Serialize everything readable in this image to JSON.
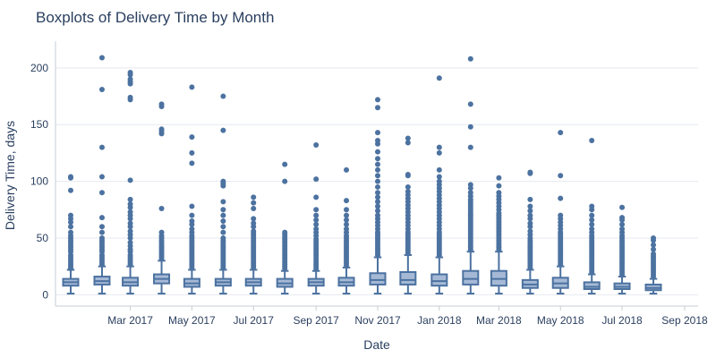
{
  "colors": {
    "box_fill": "#a5b9d6",
    "box_line": "#4c72a0",
    "point": "#4c72a0",
    "grid": "#e6e9ef",
    "axis": "#c7ccd4",
    "text": "#2a3f5f"
  },
  "chart_data": {
    "type": "box",
    "title": "Boxplots of Delivery Time by Month",
    "xlabel": "Date",
    "ylabel": "Delivery Time, days",
    "ylim": [
      -10,
      222
    ],
    "yticks": [
      0,
      50,
      100,
      150,
      200
    ],
    "grid": true,
    "xticks": [
      {
        "label": "Mar 2017",
        "date": "2017-03-01"
      },
      {
        "label": "May 2017",
        "date": "2017-05-01"
      },
      {
        "label": "Jul 2017",
        "date": "2017-07-01"
      },
      {
        "label": "Sep 2017",
        "date": "2017-09-01"
      },
      {
        "label": "Nov 2017",
        "date": "2017-11-01"
      },
      {
        "label": "Jan 2018",
        "date": "2018-01-01"
      },
      {
        "label": "Mar 2018",
        "date": "2018-03-01"
      },
      {
        "label": "May 2018",
        "date": "2018-05-01"
      },
      {
        "label": "Jul 2018",
        "date": "2018-07-01"
      },
      {
        "label": "Sep 2018",
        "date": "2018-09-01"
      }
    ],
    "boxes": [
      {
        "month": "2017-01",
        "min": 1,
        "q1": 8,
        "median": 11,
        "q3": 14,
        "max": 22,
        "outliers": [
          23,
          25,
          27,
          29,
          31,
          33,
          35,
          38,
          40,
          42,
          44,
          46,
          48,
          50,
          52,
          55,
          60,
          64,
          67,
          70,
          92,
          103,
          104
        ]
      },
      {
        "month": "2017-02",
        "min": 1,
        "q1": 9,
        "median": 12,
        "q3": 16,
        "max": 25,
        "outliers": [
          27,
          29,
          31,
          33,
          35,
          38,
          40,
          42,
          44,
          46,
          48,
          50,
          55,
          60,
          68,
          90,
          104,
          130,
          181,
          209
        ]
      },
      {
        "month": "2017-03",
        "min": 1,
        "q1": 8,
        "median": 11,
        "q3": 15,
        "max": 25,
        "outliers": [
          27,
          29,
          31,
          33,
          35,
          38,
          40,
          43,
          46,
          50,
          53,
          56,
          60,
          63,
          67,
          70,
          73,
          77,
          80,
          84,
          101,
          172,
          174,
          186,
          188,
          190,
          194,
          196
        ]
      },
      {
        "month": "2017-04",
        "min": 1,
        "q1": 10,
        "median": 14,
        "q3": 18,
        "max": 30,
        "outliers": [
          32,
          34,
          36,
          38,
          40,
          42,
          44,
          46,
          48,
          50,
          52,
          55,
          76,
          142,
          144,
          146,
          166,
          168
        ]
      },
      {
        "month": "2017-05",
        "min": 1,
        "q1": 7,
        "median": 10,
        "q3": 14,
        "max": 22,
        "outliers": [
          24,
          26,
          28,
          30,
          32,
          34,
          36,
          38,
          40,
          42,
          44,
          46,
          48,
          50,
          52,
          55,
          58,
          62,
          65,
          70,
          78,
          116,
          125,
          139,
          183
        ]
      },
      {
        "month": "2017-06",
        "min": 1,
        "q1": 8,
        "median": 11,
        "q3": 14,
        "max": 22,
        "outliers": [
          24,
          26,
          28,
          30,
          32,
          34,
          36,
          38,
          40,
          42,
          44,
          46,
          48,
          50,
          55,
          60,
          65,
          70,
          75,
          82,
          96,
          98,
          100,
          145,
          175
        ]
      },
      {
        "month": "2017-07",
        "min": 1,
        "q1": 8,
        "median": 11,
        "q3": 14,
        "max": 22,
        "outliers": [
          24,
          26,
          28,
          30,
          32,
          34,
          36,
          38,
          40,
          42,
          44,
          46,
          48,
          50,
          52,
          54,
          56,
          60,
          63,
          67,
          76,
          81,
          86
        ]
      },
      {
        "month": "2017-08",
        "min": 1,
        "q1": 7,
        "median": 10,
        "q3": 14,
        "max": 21,
        "outliers": [
          23,
          25,
          27,
          29,
          31,
          33,
          35,
          37,
          39,
          41,
          43,
          45,
          47,
          49,
          51,
          53,
          55,
          100,
          115
        ]
      },
      {
        "month": "2017-09",
        "min": 1,
        "q1": 8,
        "median": 11,
        "q3": 14,
        "max": 21,
        "outliers": [
          23,
          25,
          27,
          29,
          31,
          33,
          35,
          37,
          39,
          41,
          43,
          45,
          47,
          49,
          52,
          55,
          58,
          62,
          66,
          70,
          75,
          86,
          102,
          132
        ]
      },
      {
        "month": "2017-10",
        "min": 1,
        "q1": 8,
        "median": 11,
        "q3": 15,
        "max": 24,
        "outliers": [
          26,
          28,
          30,
          32,
          34,
          36,
          38,
          40,
          42,
          44,
          46,
          48,
          50,
          52,
          55,
          58,
          62,
          66,
          70,
          75,
          83,
          110
        ]
      },
      {
        "month": "2017-11",
        "min": 1,
        "q1": 9,
        "median": 13,
        "q3": 19,
        "max": 33,
        "outliers": [
          35,
          37,
          39,
          41,
          43,
          45,
          47,
          49,
          51,
          53,
          55,
          58,
          61,
          64,
          67,
          70,
          74,
          78,
          82,
          86,
          90,
          95,
          100,
          105,
          110,
          115,
          120,
          126,
          133,
          136,
          143,
          165,
          172
        ]
      },
      {
        "month": "2017-12",
        "min": 1,
        "q1": 9,
        "median": 13,
        "q3": 20,
        "max": 35,
        "outliers": [
          37,
          39,
          41,
          43,
          45,
          47,
          49,
          51,
          53,
          55,
          58,
          61,
          64,
          67,
          70,
          73,
          76,
          79,
          82,
          85,
          88,
          91,
          95,
          105,
          106,
          134,
          138
        ]
      },
      {
        "month": "2018-01",
        "min": 1,
        "q1": 8,
        "median": 12,
        "q3": 18,
        "max": 33,
        "outliers": [
          35,
          37,
          39,
          41,
          43,
          45,
          47,
          49,
          51,
          53,
          55,
          58,
          61,
          64,
          67,
          70,
          73,
          76,
          79,
          82,
          85,
          88,
          91,
          94,
          97,
          100,
          104,
          110,
          125,
          130,
          191
        ]
      },
      {
        "month": "2018-02",
        "min": 1,
        "q1": 9,
        "median": 14,
        "q3": 21,
        "max": 38,
        "outliers": [
          40,
          42,
          44,
          46,
          48,
          50,
          52,
          54,
          56,
          58,
          60,
          62,
          64,
          66,
          68,
          70,
          72,
          74,
          76,
          78,
          80,
          82,
          84,
          87,
          90,
          94,
          97,
          130,
          148,
          168,
          208
        ]
      },
      {
        "month": "2018-03",
        "min": 1,
        "q1": 8,
        "median": 14,
        "q3": 21,
        "max": 38,
        "outliers": [
          40,
          42,
          44,
          46,
          48,
          50,
          52,
          54,
          56,
          58,
          60,
          62,
          64,
          66,
          68,
          70,
          72,
          75,
          78,
          81,
          84,
          87,
          90,
          96,
          103
        ]
      },
      {
        "month": "2018-04",
        "min": 1,
        "q1": 6,
        "median": 9,
        "q3": 13,
        "max": 22,
        "outliers": [
          24,
          26,
          28,
          30,
          32,
          34,
          36,
          38,
          40,
          42,
          44,
          46,
          48,
          50,
          53,
          56,
          60,
          63,
          67,
          70,
          74,
          78,
          84,
          107,
          108
        ]
      },
      {
        "month": "2018-05",
        "min": 1,
        "q1": 6,
        "median": 10,
        "q3": 15,
        "max": 25,
        "outliers": [
          27,
          29,
          31,
          33,
          35,
          37,
          39,
          41,
          43,
          45,
          47,
          49,
          51,
          53,
          55,
          58,
          61,
          64,
          67,
          70,
          85,
          105,
          143
        ]
      },
      {
        "month": "2018-06",
        "min": 1,
        "q1": 5,
        "median": 7,
        "q3": 11,
        "max": 18,
        "outliers": [
          20,
          22,
          24,
          26,
          28,
          30,
          32,
          34,
          36,
          38,
          40,
          42,
          44,
          46,
          48,
          50,
          52,
          55,
          58,
          62,
          66,
          70,
          75,
          78,
          136
        ]
      },
      {
        "month": "2018-07",
        "min": 1,
        "q1": 5,
        "median": 7,
        "q3": 10,
        "max": 16,
        "outliers": [
          18,
          20,
          22,
          24,
          26,
          28,
          30,
          32,
          34,
          36,
          38,
          40,
          42,
          44,
          46,
          48,
          50,
          52,
          55,
          58,
          62,
          66,
          68,
          77
        ]
      },
      {
        "month": "2018-08",
        "min": 1,
        "q1": 4,
        "median": 6,
        "q3": 9,
        "max": 14,
        "outliers": [
          16,
          18,
          20,
          22,
          24,
          26,
          28,
          30,
          32,
          34,
          36,
          40,
          44,
          48,
          50
        ]
      }
    ]
  }
}
